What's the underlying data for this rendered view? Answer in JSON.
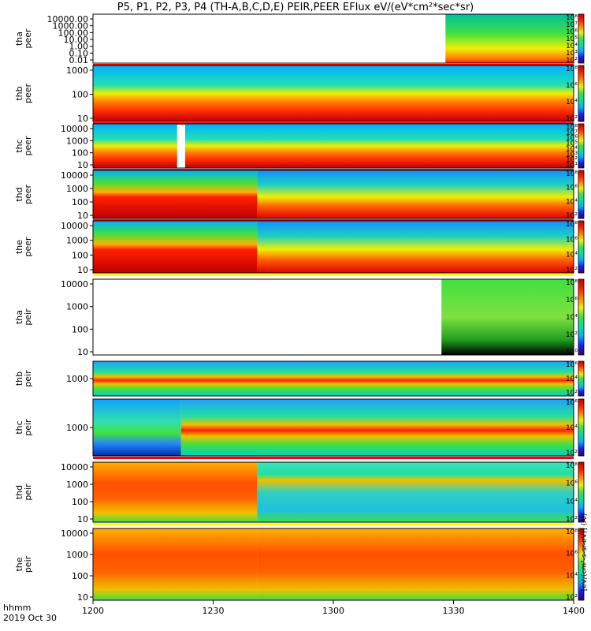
{
  "chart_data": {
    "type": "heatmap",
    "title": "P5, P1, P2, P3, P4 (TH-A,B,C,D,E) PEIR,PEER EFlux eV/(eV*cm²*sec*sr)",
    "xlabel_line1": "hhmm",
    "xlabel_line2": "2019 Oct 30",
    "x_ticks": [
      "1200",
      "1230",
      "1300",
      "1330",
      "1400"
    ],
    "xlim": [
      "12:00",
      "14:00"
    ],
    "y_scale": "log",
    "colorbar_label": "[eV/(cm²-s-sr-eV)] (Al)",
    "colorbar_colors": [
      "#3a0070",
      "#1020ff",
      "#00b0ff",
      "#00e0a0",
      "#40e040",
      "#f0f000",
      "#ff8000",
      "#ff2000",
      "#c00000"
    ],
    "panels": [
      {
        "name": "tha peer",
        "line1": "tha",
        "line2": "peer",
        "y_ticks": [
          "10000.00",
          "1000.00",
          "100.00",
          "10.00",
          "1.00",
          "0.10",
          "0.01"
        ],
        "cb_ticks": [
          "10⁸",
          "10⁷",
          "10⁶",
          "10⁵",
          "10⁴",
          "10³",
          "10²"
        ],
        "segments": [
          {
            "from": 1328,
            "to": 1400,
            "profile": "narrow"
          }
        ],
        "bottom": "#ff0000"
      },
      {
        "name": "thb peer",
        "line1": "thb",
        "line2": "peer",
        "y_ticks": [
          "1000",
          "100",
          "10"
        ],
        "cb_ticks": [
          "10⁸",
          "10⁶",
          "10⁴",
          "10²"
        ],
        "segments": [
          {
            "from": 1200,
            "to": 1400,
            "profile": "std"
          }
        ],
        "bottom": "#ff0000"
      },
      {
        "name": "thc peer",
        "line1": "thc",
        "line2": "peer",
        "y_ticks": [
          "10000",
          "1000",
          "100",
          "10"
        ],
        "cb_ticks": [
          "10⁸",
          "10⁷",
          "10⁶",
          "10⁵",
          "10⁴",
          "10³",
          "10²",
          "10¹"
        ],
        "segments": [
          {
            "from": 1200,
            "to": 1221,
            "profile": "std"
          },
          {
            "from": 1223,
            "to": 1400,
            "profile": "std"
          }
        ],
        "bottom": "#ff0000"
      },
      {
        "name": "thd peer",
        "line1": "thd",
        "line2": "peer",
        "y_ticks": [
          "10000",
          "1000",
          "100",
          "10"
        ],
        "cb_ticks": [
          "10⁸",
          "10⁶",
          "10⁴",
          "10²"
        ],
        "segments": [
          {
            "from": 1200,
            "to": 1241,
            "profile": "hot"
          },
          {
            "from": 1241,
            "to": 1400,
            "profile": "warm"
          }
        ],
        "bottom": "#ff0000"
      },
      {
        "name": "the peer",
        "line1": "the",
        "line2": "peer",
        "y_ticks": [
          "10000",
          "1000",
          "100",
          "10"
        ],
        "cb_ticks": [
          "10⁸",
          "10⁶",
          "10⁴",
          "10²"
        ],
        "segments": [
          {
            "from": 1200,
            "to": 1241,
            "profile": "hot"
          },
          {
            "from": 1241,
            "to": 1400,
            "profile": "warm"
          }
        ],
        "bottom": "#ffff00"
      },
      {
        "name": "tha peir",
        "line1": "tha",
        "line2": "peir",
        "y_ticks": [
          "10000",
          "1000",
          "100",
          "10"
        ],
        "cb_ticks": [
          "10⁸",
          "10⁶",
          "10⁴",
          "10²",
          "10⁰"
        ],
        "segments": [
          {
            "from": 1327,
            "to": 1400,
            "profile": "sparse"
          }
        ],
        "bottom": null
      },
      {
        "name": "thb peir",
        "line1": "thb",
        "line2": "peir",
        "y_ticks": [
          "1000"
        ],
        "cb_ticks": [
          "10⁶",
          "10⁴",
          "10²"
        ],
        "segments": [
          {
            "from": 1200,
            "to": 1400,
            "profile": "band"
          }
        ],
        "bottom": null
      },
      {
        "name": "thc peir",
        "line1": "thc",
        "line2": "peir",
        "y_ticks": [
          "1000"
        ],
        "cb_ticks": [
          "10⁶",
          "10⁴",
          "10²"
        ],
        "segments": [
          {
            "from": 1200,
            "to": 1222,
            "profile": "bandLow"
          },
          {
            "from": 1222,
            "to": 1400,
            "profile": "band"
          }
        ],
        "bottom": "#ff0000"
      },
      {
        "name": "thd peir",
        "line1": "thd",
        "line2": "peir",
        "y_ticks": [
          "10000",
          "1000",
          "100",
          "10"
        ],
        "cb_ticks": [
          "10⁸",
          "10⁶",
          "10⁴",
          "10²"
        ],
        "segments": [
          {
            "from": 1200,
            "to": 1241,
            "profile": "hotIon"
          },
          {
            "from": 1241,
            "to": 1400,
            "profile": "warmIon"
          }
        ],
        "bottom": "#ffff00"
      },
      {
        "name": "the peir",
        "line1": "the",
        "line2": "peir",
        "y_ticks": [
          "10000",
          "1000",
          "100",
          "10"
        ],
        "cb_ticks": [
          "10⁸",
          "10⁶",
          "10⁴",
          "10²"
        ],
        "segments": [
          {
            "from": 1200,
            "to": 1241,
            "profile": "hotIon"
          },
          {
            "from": 1241,
            "to": 1400,
            "profile": "hotIon"
          }
        ],
        "bottom": null
      }
    ]
  }
}
